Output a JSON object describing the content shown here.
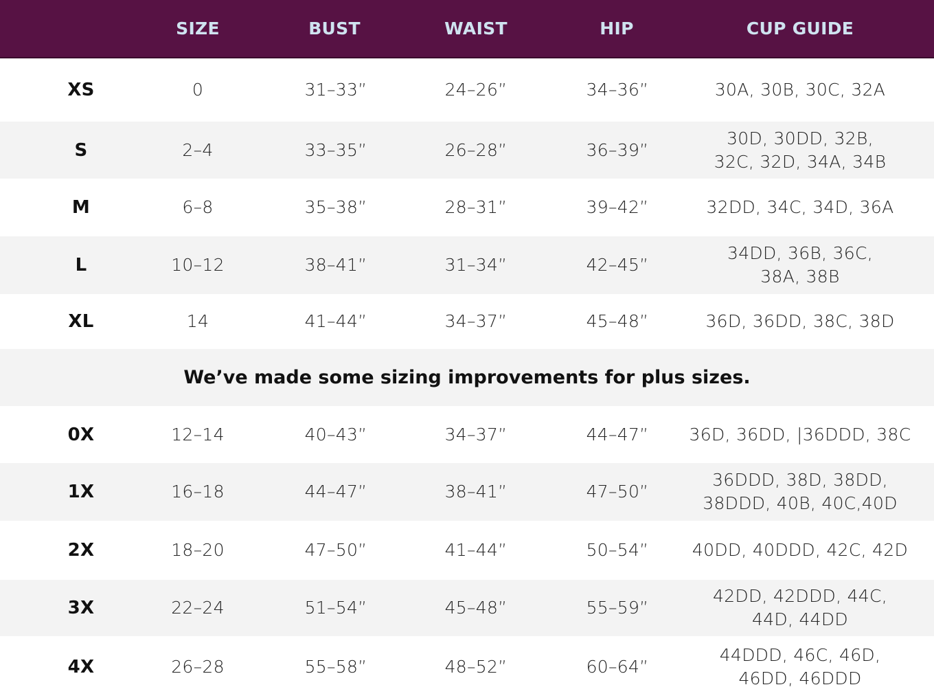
{
  "header": {
    "columns": [
      "",
      "SIZE",
      "BUST",
      "WAIST",
      "HIP",
      "CUP GUIDE"
    ]
  },
  "colors": {
    "header_bg": "#571244",
    "header_text": "#cfe3f0",
    "alt_row": "#f3f3f3"
  },
  "rows": [
    {
      "label": "XS",
      "size": "0",
      "bust": "31–33”",
      "waist": "24–26”",
      "hip": "34–36”",
      "cup": [
        "30A, 30B, 30C, 32A"
      ]
    },
    {
      "label": "S",
      "size": "2–4",
      "bust": "33–35”",
      "waist": "26–28”",
      "hip": "36–39”",
      "cup": [
        "30D, 30DD, 32B,",
        "32C, 32D, 34A, 34B"
      ]
    },
    {
      "label": "M",
      "size": "6–8",
      "bust": "35–38”",
      "waist": "28–31”",
      "hip": "39–42”",
      "cup": [
        "32DD, 34C, 34D, 36A"
      ]
    },
    {
      "label": "L",
      "size": "10–12",
      "bust": "38–41”",
      "waist": "31–34”",
      "hip": "42–45”",
      "cup": [
        "34DD, 36B, 36C,",
        "38A, 38B"
      ]
    },
    {
      "label": "XL",
      "size": "14",
      "bust": "41–44”",
      "waist": "34–37”",
      "hip": "45–48”",
      "cup": [
        "36D, 36DD, 38C, 38D"
      ]
    },
    {
      "banner": "We’ve made some sizing improvements for plus sizes."
    },
    {
      "label": "0X",
      "size": "12–14",
      "bust": "40–43”",
      "waist": "34–37”",
      "hip": "44–47”",
      "cup": [
        "36D, 36DD, |36DDD, 38C"
      ]
    },
    {
      "label": "1X",
      "size": "16–18",
      "bust": "44–47”",
      "waist": "38–41”",
      "hip": "47–50”",
      "cup": [
        "36DDD, 38D, 38DD,",
        "38DDD, 40B, 40C,40D"
      ]
    },
    {
      "label": "2X",
      "size": "18–20",
      "bust": "47–50”",
      "waist": "41–44”",
      "hip": "50–54”",
      "cup": [
        "40DD, 40DDD, 42C, 42D"
      ]
    },
    {
      "label": "3X",
      "size": "22–24",
      "bust": "51–54”",
      "waist": "45–48”",
      "hip": "55–59”",
      "cup": [
        "42DD, 42DDD, 44C,",
        "44D, 44DD"
      ]
    },
    {
      "label": "4X",
      "size": "26–28",
      "bust": "55–58”",
      "waist": "48–52”",
      "hip": "60–64”",
      "cup": [
        "44DDD, 46C, 46D,",
        "46DD, 46DDD"
      ]
    }
  ]
}
